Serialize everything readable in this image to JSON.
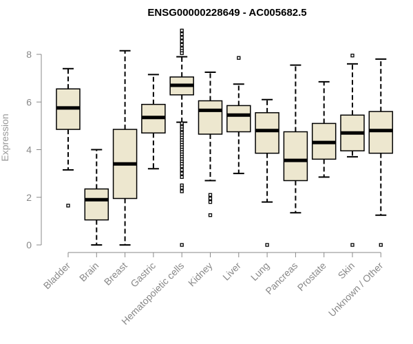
{
  "chart_data": {
    "type": "box",
    "title": "ENSG00000228649 - AC005682.5",
    "xlabel": "",
    "ylabel": "Expression",
    "ylim": [
      0,
      9.2
    ],
    "yticks": [
      0,
      2,
      4,
      6,
      8
    ],
    "grid": false,
    "colors": {
      "box_fill": "#ede7cf",
      "box_stroke": "#000000",
      "axis": "#888888",
      "text": "#888888"
    },
    "categories": [
      "Bladder",
      "Brain",
      "Breast",
      "Gastric",
      "Hematopoietic cells",
      "Kidney",
      "Liver",
      "Lung",
      "Pancreas",
      "Prostate",
      "Skin",
      "Unknown / Other"
    ],
    "boxes": [
      {
        "category": "Bladder",
        "whisker_low": 3.15,
        "q1": 4.85,
        "median": 5.75,
        "q3": 6.55,
        "whisker_high": 7.4,
        "outliers": [
          1.65
        ]
      },
      {
        "category": "Brain",
        "whisker_low": 0.0,
        "q1": 1.05,
        "median": 1.9,
        "q3": 2.35,
        "whisker_high": 4.0,
        "outliers": []
      },
      {
        "category": "Breast",
        "whisker_low": 0.0,
        "q1": 1.95,
        "median": 3.4,
        "q3": 4.85,
        "whisker_high": 8.15,
        "outliers": []
      },
      {
        "category": "Gastric",
        "whisker_low": 3.2,
        "q1": 4.7,
        "median": 5.35,
        "q3": 5.9,
        "whisker_high": 7.15,
        "outliers": []
      },
      {
        "category": "Hematopoietic cells",
        "whisker_low": 5.15,
        "q1": 6.3,
        "median": 6.7,
        "q3": 7.05,
        "whisker_high": 7.9,
        "outliers": [
          9.0,
          8.85,
          8.7,
          8.55,
          8.4,
          8.25,
          8.15,
          8.05,
          5.1,
          5.0,
          4.95,
          4.85,
          4.75,
          4.7,
          4.6,
          4.5,
          4.4,
          4.3,
          4.2,
          4.1,
          4.0,
          3.9,
          3.8,
          3.7,
          3.6,
          3.5,
          3.4,
          3.3,
          3.15,
          3.0,
          2.85,
          2.5,
          2.4,
          2.25,
          0.0
        ]
      },
      {
        "category": "Kidney",
        "whisker_low": 2.7,
        "q1": 4.65,
        "median": 5.65,
        "q3": 6.05,
        "whisker_high": 7.25,
        "outliers": [
          2.1,
          1.95,
          1.8,
          1.25
        ]
      },
      {
        "category": "Liver",
        "whisker_low": 3.0,
        "q1": 4.75,
        "median": 5.45,
        "q3": 5.85,
        "whisker_high": 6.75,
        "outliers": [
          7.85
        ]
      },
      {
        "category": "Lung",
        "whisker_low": 1.8,
        "q1": 3.85,
        "median": 4.8,
        "q3": 5.55,
        "whisker_high": 6.1,
        "outliers": [
          0.0
        ]
      },
      {
        "category": "Pancreas",
        "whisker_low": 1.35,
        "q1": 2.7,
        "median": 3.55,
        "q3": 4.75,
        "whisker_high": 7.55,
        "outliers": []
      },
      {
        "category": "Prostate",
        "whisker_low": 2.85,
        "q1": 3.6,
        "median": 4.3,
        "q3": 5.1,
        "whisker_high": 6.85,
        "outliers": []
      },
      {
        "category": "Skin",
        "whisker_low": 3.7,
        "q1": 3.95,
        "median": 4.7,
        "q3": 5.45,
        "whisker_high": 7.6,
        "outliers": [
          7.95,
          0.0
        ]
      },
      {
        "category": "Unknown / Other",
        "whisker_low": 1.25,
        "q1": 3.85,
        "median": 4.8,
        "q3": 5.6,
        "whisker_high": 7.8,
        "outliers": [
          0.0
        ]
      }
    ]
  }
}
